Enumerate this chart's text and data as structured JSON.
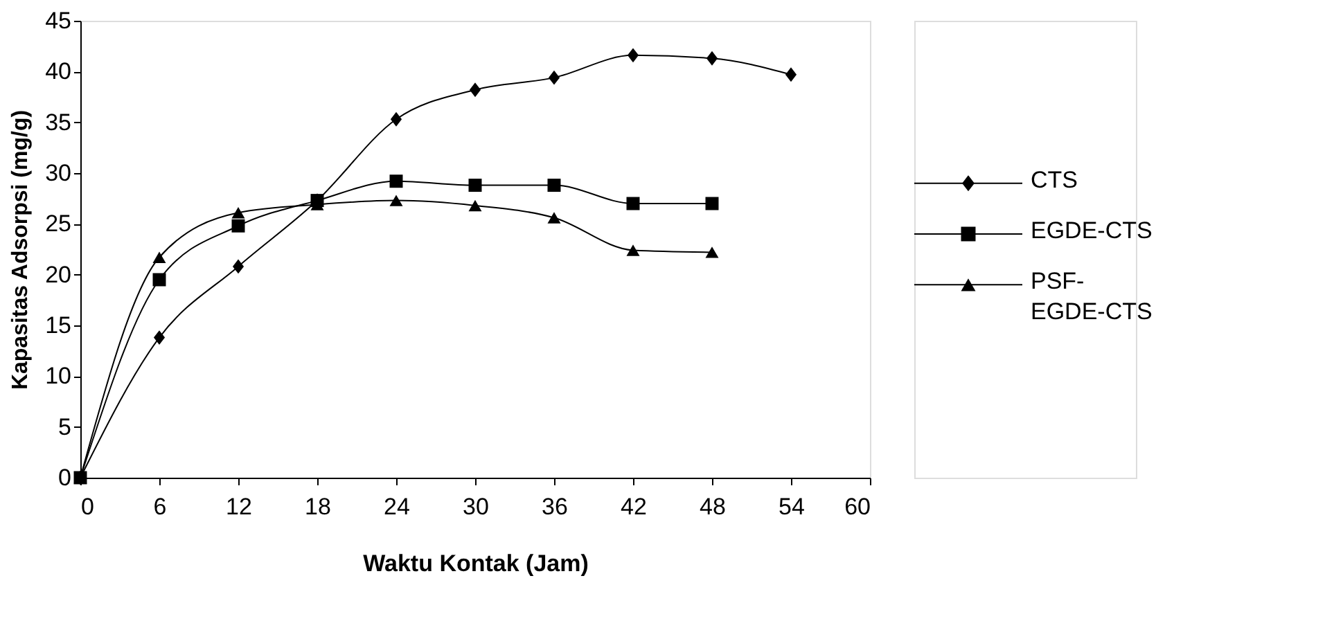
{
  "chart_data": {
    "type": "line",
    "xlabel": "Waktu Kontak (Jam)",
    "ylabel": "Kapasitas Adsorpsi (mg/g)",
    "xlim": [
      0,
      60
    ],
    "xticks": [
      0,
      6,
      12,
      18,
      24,
      30,
      36,
      42,
      48,
      54,
      60
    ],
    "ylim": [
      0,
      45
    ],
    "yticks": [
      0,
      5,
      10,
      15,
      20,
      25,
      30,
      35,
      40,
      45
    ],
    "grid": false,
    "legend": "right",
    "series": [
      {
        "name": "CTS",
        "color": "#000000",
        "marker": "diamond",
        "x": [
          0,
          6,
          12,
          18,
          24,
          30,
          36,
          42,
          48,
          54
        ],
        "values": [
          0,
          13.8,
          20.8,
          27.3,
          35.3,
          38.2,
          39.4,
          41.6,
          41.3,
          39.7
        ]
      },
      {
        "name": "EGDE-CTS",
        "color": "#000000",
        "marker": "square",
        "x": [
          0,
          6,
          12,
          18,
          24,
          30,
          36,
          42,
          48
        ],
        "values": [
          0,
          19.5,
          24.8,
          27.3,
          29.2,
          28.8,
          28.8,
          27,
          27
        ]
      },
      {
        "name": "PSF-EGDE-CTS",
        "color": "#000000",
        "marker": "triangle",
        "x": [
          0,
          6,
          12,
          18,
          24,
          30,
          36,
          42,
          48
        ],
        "values": [
          0,
          21.7,
          26.1,
          26.9,
          27.3,
          26.8,
          25.6,
          22.4,
          22.2
        ]
      }
    ]
  }
}
